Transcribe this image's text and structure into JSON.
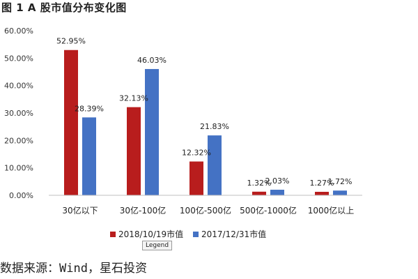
{
  "title": "图 1 A 股市值分布变化图",
  "source": "数据来源：Wind，星石投资",
  "tooltip": "Legend",
  "colors": {
    "series1": "#b81d1d",
    "series2": "#4472c4"
  },
  "chart_data": {
    "type": "bar",
    "categories": [
      "30亿以下",
      "30亿-100亿",
      "100亿-500亿",
      "500亿-1000亿",
      "1000亿以上"
    ],
    "series": [
      {
        "name": "2018/10/19市值",
        "values": [
          52.95,
          32.13,
          12.32,
          1.32,
          1.27
        ],
        "labels": [
          "52.95%",
          "32.13%",
          "12.32%",
          "1.32%",
          "1.27%"
        ]
      },
      {
        "name": "2017/12/31市值",
        "values": [
          28.39,
          46.03,
          21.83,
          2.03,
          1.72
        ],
        "labels": [
          "28.39%",
          "46.03%",
          "21.83%",
          "2.03%",
          "1.72%"
        ]
      }
    ],
    "yticks": [
      "0.00%",
      "10.00%",
      "20.00%",
      "30.00%",
      "40.00%",
      "50.00%",
      "60.00%"
    ],
    "ylim": [
      0,
      60
    ],
    "grid": false,
    "legend_position": "bottom"
  }
}
